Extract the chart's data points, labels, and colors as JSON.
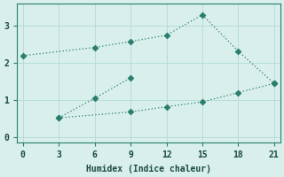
{
  "xlabel": "Humidex (Indice chaleur)",
  "line1_x": [
    0,
    6,
    9,
    12,
    15,
    18,
    21
  ],
  "line1_y": [
    2.2,
    2.42,
    2.58,
    2.75,
    3.3,
    2.32,
    1.45
  ],
  "line2_x": [
    3,
    6,
    9
  ],
  "line2_y": [
    0.52,
    1.05,
    1.6
  ],
  "line3_x": [
    3,
    9,
    12,
    15,
    18,
    21
  ],
  "line3_y": [
    0.52,
    0.68,
    0.82,
    0.95,
    1.2,
    1.45
  ],
  "line_color": "#2a7d6e",
  "background_color": "#d8efeb",
  "grid_color": "#b8ddd8",
  "xlim": [
    -0.5,
    21.5
  ],
  "ylim": [
    -0.15,
    3.6
  ],
  "xticks": [
    0,
    3,
    6,
    9,
    12,
    15,
    18,
    21
  ],
  "yticks": [
    0,
    1,
    2,
    3
  ],
  "marker": "D",
  "markersize": 3.5,
  "linewidth": 0.9
}
